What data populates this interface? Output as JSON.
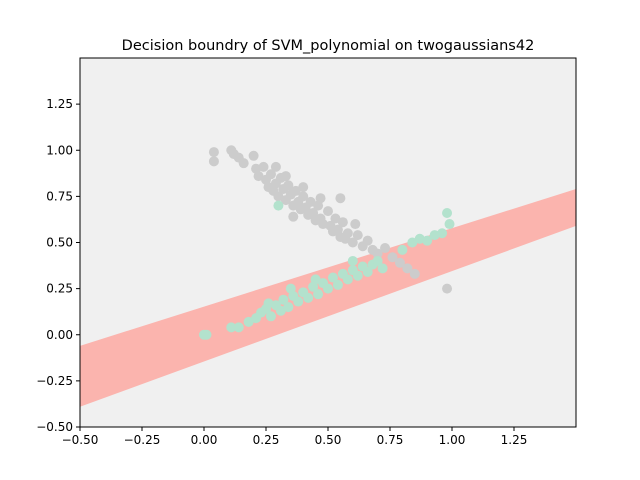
{
  "chart_data": {
    "type": "scatter",
    "title": "Decision boundry of SVM_polynomial on twogaussians42",
    "xlabel": "",
    "ylabel": "",
    "xlim": [
      -0.5,
      1.5
    ],
    "ylim": [
      -0.5,
      1.5
    ],
    "x_ticks": [
      -0.5,
      -0.25,
      0.0,
      0.25,
      0.5,
      0.75,
      1.0,
      1.25
    ],
    "x_tick_labels": [
      "−0.50",
      "−0.25",
      "0.00",
      "0.25",
      "0.50",
      "0.75",
      "1.00",
      "1.25"
    ],
    "y_ticks": [
      -0.5,
      -0.25,
      0.0,
      0.25,
      0.5,
      0.75,
      1.0,
      1.25
    ],
    "y_tick_labels": [
      "−0.50",
      "−0.25",
      "0.00",
      "0.25",
      "0.50",
      "0.75",
      "1.00",
      "1.25"
    ],
    "grid": false,
    "legend": "none",
    "colors": {
      "background_region": "#f0f0f0",
      "decision_band": "#fbb4ae",
      "class_gray": "#cccccc",
      "class_green": "#b3e2cd"
    },
    "decision_band": {
      "lower_edge": [
        [
          -0.5,
          -0.39
        ],
        [
          1.5,
          0.59
        ]
      ],
      "upper_edge": [
        [
          -0.5,
          -0.06
        ],
        [
          1.5,
          0.79
        ]
      ]
    },
    "series": [
      {
        "color": "#cccccc",
        "points": [
          [
            0.04,
            0.99
          ],
          [
            0.04,
            0.94
          ],
          [
            0.11,
            1.0
          ],
          [
            0.12,
            0.98
          ],
          [
            0.14,
            0.96
          ],
          [
            0.16,
            0.93
          ],
          [
            0.2,
            0.97
          ],
          [
            0.21,
            0.9
          ],
          [
            0.22,
            0.86
          ],
          [
            0.24,
            0.91
          ],
          [
            0.25,
            0.84
          ],
          [
            0.26,
            0.8
          ],
          [
            0.27,
            0.87
          ],
          [
            0.28,
            0.78
          ],
          [
            0.29,
            0.82
          ],
          [
            0.3,
            0.75
          ],
          [
            0.31,
            0.85
          ],
          [
            0.32,
            0.79
          ],
          [
            0.33,
            0.73
          ],
          [
            0.34,
            0.81
          ],
          [
            0.35,
            0.76
          ],
          [
            0.36,
            0.7
          ],
          [
            0.37,
            0.78
          ],
          [
            0.38,
            0.72
          ],
          [
            0.39,
            0.68
          ],
          [
            0.4,
            0.75
          ],
          [
            0.41,
            0.69
          ],
          [
            0.42,
            0.65
          ],
          [
            0.43,
            0.72
          ],
          [
            0.44,
            0.66
          ],
          [
            0.45,
            0.62
          ],
          [
            0.46,
            0.7
          ],
          [
            0.47,
            0.63
          ],
          [
            0.48,
            0.6
          ],
          [
            0.5,
            0.67
          ],
          [
            0.51,
            0.59
          ],
          [
            0.52,
            0.56
          ],
          [
            0.53,
            0.63
          ],
          [
            0.54,
            0.57
          ],
          [
            0.55,
            0.53
          ],
          [
            0.56,
            0.61
          ],
          [
            0.57,
            0.52
          ],
          [
            0.58,
            0.55
          ],
          [
            0.6,
            0.5
          ],
          [
            0.62,
            0.54
          ],
          [
            0.64,
            0.48
          ],
          [
            0.66,
            0.51
          ],
          [
            0.68,
            0.46
          ],
          [
            0.7,
            0.44
          ],
          [
            0.73,
            0.47
          ],
          [
            0.76,
            0.42
          ],
          [
            0.79,
            0.39
          ],
          [
            0.82,
            0.36
          ],
          [
            0.85,
            0.33
          ],
          [
            0.98,
            0.25
          ],
          [
            0.55,
            0.74
          ],
          [
            0.33,
            0.86
          ],
          [
            0.29,
            0.91
          ],
          [
            0.4,
            0.8
          ],
          [
            0.47,
            0.74
          ],
          [
            0.61,
            0.6
          ],
          [
            0.36,
            0.64
          ]
        ]
      },
      {
        "color": "#b3e2cd",
        "points": [
          [
            0.0,
            0.0
          ],
          [
            0.01,
            0.0
          ],
          [
            0.11,
            0.04
          ],
          [
            0.14,
            0.04
          ],
          [
            0.18,
            0.07
          ],
          [
            0.21,
            0.09
          ],
          [
            0.23,
            0.12
          ],
          [
            0.25,
            0.14
          ],
          [
            0.27,
            0.1
          ],
          [
            0.29,
            0.16
          ],
          [
            0.31,
            0.13
          ],
          [
            0.32,
            0.19
          ],
          [
            0.34,
            0.15
          ],
          [
            0.36,
            0.21
          ],
          [
            0.38,
            0.18
          ],
          [
            0.4,
            0.23
          ],
          [
            0.42,
            0.2
          ],
          [
            0.44,
            0.26
          ],
          [
            0.46,
            0.22
          ],
          [
            0.48,
            0.28
          ],
          [
            0.5,
            0.25
          ],
          [
            0.52,
            0.31
          ],
          [
            0.54,
            0.27
          ],
          [
            0.56,
            0.33
          ],
          [
            0.58,
            0.3
          ],
          [
            0.6,
            0.35
          ],
          [
            0.62,
            0.32
          ],
          [
            0.64,
            0.37
          ],
          [
            0.66,
            0.34
          ],
          [
            0.68,
            0.38
          ],
          [
            0.7,
            0.4
          ],
          [
            0.72,
            0.36
          ],
          [
            0.8,
            0.46
          ],
          [
            0.84,
            0.5
          ],
          [
            0.87,
            0.52
          ],
          [
            0.9,
            0.51
          ],
          [
            0.93,
            0.54
          ],
          [
            0.96,
            0.55
          ],
          [
            0.99,
            0.6
          ],
          [
            0.98,
            0.66
          ],
          [
            0.3,
            0.7
          ],
          [
            0.26,
            0.17
          ],
          [
            0.45,
            0.3
          ],
          [
            0.6,
            0.4
          ],
          [
            0.35,
            0.25
          ]
        ]
      }
    ]
  }
}
